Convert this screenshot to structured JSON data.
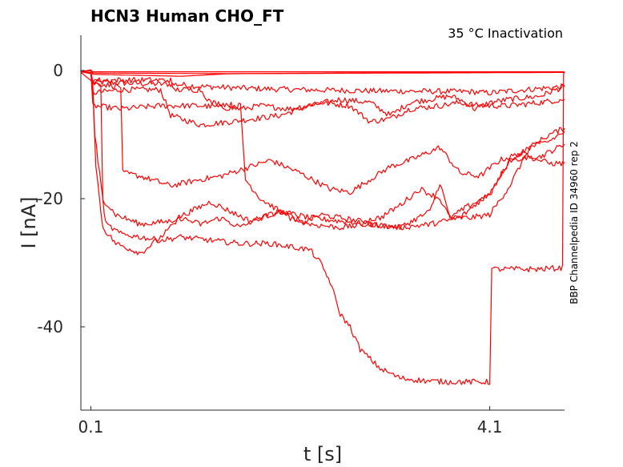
{
  "chart_data": {
    "type": "line",
    "title": "HCN3  Human  CHO_FT",
    "subtitle": "35 °C  Inactivation",
    "side_label": "BBP Channelpedia ID 34960 rep 2",
    "xlabel": "t [s]",
    "ylabel": "I [nA]",
    "xlim": [
      0.0,
      4.85
    ],
    "ylim": [
      -53,
      5.5
    ],
    "x_ticks": [
      {
        "value": 0.1,
        "label": "0.1"
      },
      {
        "value": 4.1,
        "label": "4.1"
      }
    ],
    "y_ticks": [
      {
        "value": 0,
        "label": "0"
      },
      {
        "value": -20,
        "label": "-20"
      },
      {
        "value": -40,
        "label": "-40"
      }
    ],
    "grid": false,
    "color": "#ff0000",
    "series": [
      {
        "points": [
          [
            0.0,
            -0.2
          ],
          [
            0.1,
            0.0
          ],
          [
            0.12,
            -0.2
          ],
          [
            4.85,
            -0.2
          ]
        ]
      },
      {
        "points": [
          [
            0.0,
            -0.2
          ],
          [
            0.1,
            0.1
          ],
          [
            0.12,
            -0.4
          ],
          [
            1.5,
            -0.5
          ],
          [
            2.5,
            -0.4
          ],
          [
            3.5,
            -0.3
          ],
          [
            4.85,
            -0.2
          ]
        ]
      },
      {
        "points": [
          [
            0.0,
            -0.2
          ],
          [
            0.1,
            0.0
          ],
          [
            0.12,
            -0.6
          ],
          [
            1.0,
            -0.9
          ],
          [
            1.5,
            -0.5
          ],
          [
            4.85,
            -0.3
          ]
        ]
      },
      {
        "points": [
          [
            0.0,
            -0.3
          ],
          [
            0.12,
            -1.8
          ],
          [
            0.5,
            -2.0
          ],
          [
            1.0,
            -2.2
          ],
          [
            1.2,
            -2.5
          ],
          [
            1.7,
            -2.8
          ],
          [
            2.2,
            -3.0
          ],
          [
            3.0,
            -3.2
          ],
          [
            3.9,
            -3.3
          ],
          [
            4.1,
            -3.5
          ],
          [
            4.3,
            -3.2
          ],
          [
            4.85,
            -2.5
          ]
        ]
      },
      {
        "points": [
          [
            0.0,
            -0.2
          ],
          [
            0.1,
            -0.4
          ],
          [
            0.12,
            -3.5
          ],
          [
            0.4,
            -3.0
          ],
          [
            0.8,
            -3.0
          ],
          [
            0.9,
            -7.0
          ],
          [
            1.2,
            -8.5
          ],
          [
            1.5,
            -8.0
          ],
          [
            2.0,
            -7.0
          ],
          [
            2.3,
            -5.5
          ],
          [
            2.6,
            -4.5
          ],
          [
            2.9,
            -5.0
          ],
          [
            3.1,
            -7.0
          ],
          [
            3.3,
            -5.0
          ],
          [
            3.5,
            -4.5
          ],
          [
            3.7,
            -4.0
          ],
          [
            3.8,
            -4.5
          ],
          [
            3.95,
            -6.0
          ],
          [
            4.1,
            -5.0
          ],
          [
            4.3,
            -4.5
          ],
          [
            4.6,
            -4.0
          ],
          [
            4.85,
            -2.5
          ]
        ]
      },
      {
        "points": [
          [
            0.0,
            -0.2
          ],
          [
            0.1,
            -0.4
          ],
          [
            0.12,
            -5.5
          ],
          [
            0.4,
            -6.0
          ],
          [
            0.8,
            -5.5
          ],
          [
            1.2,
            -5.5
          ],
          [
            1.6,
            -6.0
          ],
          [
            1.8,
            -5.5
          ],
          [
            2.1,
            -6.0
          ],
          [
            2.4,
            -5.0
          ],
          [
            2.7,
            -5.5
          ],
          [
            2.9,
            -8.0
          ],
          [
            3.1,
            -7.5
          ],
          [
            3.3,
            -6.0
          ],
          [
            3.6,
            -5.5
          ],
          [
            3.8,
            -5.0
          ],
          [
            4.0,
            -5.5
          ],
          [
            4.3,
            -5.5
          ],
          [
            4.6,
            -5.0
          ],
          [
            4.85,
            -4.5
          ]
        ]
      },
      {
        "points": [
          [
            0.0,
            -0.2
          ],
          [
            0.1,
            -0.5
          ],
          [
            0.12,
            -2.0
          ],
          [
            0.4,
            -2.5
          ],
          [
            0.42,
            -16.0
          ],
          [
            0.6,
            -16.5
          ],
          [
            0.9,
            -18.0
          ],
          [
            1.2,
            -17.0
          ],
          [
            1.4,
            -16.5
          ],
          [
            1.7,
            -15.0
          ],
          [
            1.9,
            -14.0
          ],
          [
            2.2,
            -16.0
          ],
          [
            2.5,
            -18.5
          ],
          [
            2.7,
            -19.0
          ],
          [
            2.9,
            -17.0
          ],
          [
            3.1,
            -15.0
          ],
          [
            3.3,
            -14.0
          ],
          [
            3.6,
            -12.0
          ],
          [
            3.8,
            -16.0
          ],
          [
            4.0,
            -16.5
          ],
          [
            4.2,
            -14.0
          ],
          [
            4.4,
            -13.0
          ],
          [
            4.6,
            -13.5
          ],
          [
            4.85,
            -11.5
          ]
        ]
      },
      {
        "points": [
          [
            0.0,
            -0.2
          ],
          [
            0.1,
            -0.3
          ],
          [
            0.12,
            -1.5
          ],
          [
            0.9,
            -1.5
          ],
          [
            0.92,
            -3.0
          ],
          [
            1.2,
            -3.0
          ],
          [
            1.3,
            -5.0
          ],
          [
            1.6,
            -5.5
          ],
          [
            1.65,
            -17.0
          ],
          [
            1.8,
            -20.0
          ],
          [
            2.0,
            -22.0
          ],
          [
            2.3,
            -23.0
          ],
          [
            2.6,
            -23.5
          ],
          [
            2.9,
            -24.0
          ],
          [
            3.2,
            -24.5
          ],
          [
            3.5,
            -22.0
          ],
          [
            3.6,
            -17.5
          ],
          [
            3.7,
            -23.0
          ],
          [
            3.9,
            -23.0
          ],
          [
            4.1,
            -22.5
          ],
          [
            4.3,
            -18.0
          ],
          [
            4.5,
            -12.0
          ],
          [
            4.7,
            -11.0
          ],
          [
            4.85,
            -9.5
          ]
        ]
      },
      {
        "points": [
          [
            0.0,
            -0.2
          ],
          [
            0.1,
            -0.3
          ],
          [
            0.12,
            -2.0
          ],
          [
            0.2,
            -2.5
          ],
          [
            0.22,
            -20.0
          ],
          [
            0.35,
            -22.5
          ],
          [
            0.6,
            -24.0
          ],
          [
            0.9,
            -23.5
          ],
          [
            1.1,
            -22.0
          ],
          [
            1.3,
            -20.5
          ],
          [
            1.5,
            -22.0
          ],
          [
            1.7,
            -23.5
          ],
          [
            2.0,
            -22.0
          ],
          [
            2.2,
            -24.0
          ],
          [
            2.4,
            -22.5
          ],
          [
            2.6,
            -23.0
          ],
          [
            2.8,
            -23.5
          ],
          [
            3.0,
            -23.0
          ],
          [
            3.2,
            -21.0
          ],
          [
            3.4,
            -18.5
          ],
          [
            3.6,
            -20.0
          ],
          [
            3.7,
            -23.0
          ],
          [
            3.9,
            -21.0
          ],
          [
            4.1,
            -19.5
          ],
          [
            4.3,
            -14.0
          ],
          [
            4.5,
            -12.0
          ],
          [
            4.7,
            -10.0
          ],
          [
            4.85,
            -9.0
          ]
        ]
      },
      {
        "points": [
          [
            0.0,
            -0.2
          ],
          [
            0.1,
            -0.3
          ],
          [
            0.12,
            -2.5
          ],
          [
            0.15,
            -15.0
          ],
          [
            0.22,
            -24.5
          ],
          [
            0.35,
            -27.0
          ],
          [
            0.6,
            -28.5
          ],
          [
            0.8,
            -26.0
          ],
          [
            1.0,
            -23.0
          ],
          [
            1.2,
            -24.0
          ],
          [
            1.4,
            -23.0
          ],
          [
            1.6,
            -24.5
          ],
          [
            1.8,
            -23.0
          ],
          [
            2.0,
            -22.0
          ],
          [
            2.3,
            -24.0
          ],
          [
            2.6,
            -24.5
          ],
          [
            2.9,
            -24.0
          ],
          [
            3.2,
            -24.5
          ],
          [
            3.5,
            -24.0
          ],
          [
            3.8,
            -23.0
          ],
          [
            4.1,
            -19.0
          ],
          [
            4.3,
            -14.0
          ],
          [
            4.5,
            -13.5
          ],
          [
            4.7,
            -14.5
          ],
          [
            4.85,
            -14.5
          ]
        ]
      },
      {
        "points": [
          [
            0.0,
            -0.2
          ],
          [
            0.1,
            -0.3
          ],
          [
            0.12,
            -2.0
          ],
          [
            0.14,
            -10.0
          ],
          [
            0.25,
            -24.0
          ],
          [
            0.4,
            -25.5
          ],
          [
            0.6,
            -26.0
          ],
          [
            0.8,
            -26.5
          ],
          [
            1.0,
            -26.0
          ],
          [
            1.3,
            -26.5
          ],
          [
            1.6,
            -27.0
          ],
          [
            1.9,
            -27.0
          ],
          [
            2.1,
            -27.5
          ],
          [
            2.3,
            -28.0
          ],
          [
            2.4,
            -30.0
          ],
          [
            2.5,
            -33.0
          ],
          [
            2.6,
            -38.0
          ],
          [
            2.7,
            -40.0
          ],
          [
            2.8,
            -43.5
          ],
          [
            3.0,
            -46.5
          ],
          [
            3.2,
            -48.0
          ],
          [
            3.5,
            -48.5
          ],
          [
            3.8,
            -48.6
          ],
          [
            4.1,
            -48.6
          ],
          [
            4.12,
            -31.0
          ],
          [
            4.3,
            -31.0
          ],
          [
            4.6,
            -31.0
          ],
          [
            4.83,
            -30.8
          ],
          [
            4.84,
            -0.5
          ],
          [
            4.85,
            -0.3
          ]
        ]
      }
    ]
  }
}
